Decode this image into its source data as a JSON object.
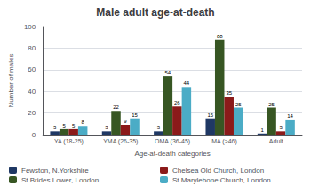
{
  "chart_data": {
    "type": "bar",
    "title": "Male adult age-at-death",
    "xlabel": "Age-at-death categories",
    "ylabel": "Number of males",
    "categories": [
      "YA (18-25)",
      "YMA (26-35)",
      "OMA (36-45)",
      "MA (>46)",
      "Adult"
    ],
    "series": [
      {
        "name": "Fewston, N.Yorkshire",
        "color": "#1F3864",
        "values": [
          3,
          3,
          3,
          15,
          1
        ]
      },
      {
        "name": "St Brides Lower, London",
        "color": "#375623",
        "values": [
          5,
          22,
          54,
          88,
          25
        ]
      },
      {
        "name": "Chelsea Old Church, London",
        "color": "#8B1A1A",
        "values": [
          5,
          9,
          26,
          35,
          3
        ]
      },
      {
        "name": "St Marylebone Church, London",
        "color": "#4BACC6",
        "values": [
          8,
          15,
          44,
          25,
          14
        ]
      }
    ],
    "ylim": [
      0,
      100
    ],
    "yticks": [
      0,
      20,
      40,
      60,
      80,
      100
    ],
    "grid": true,
    "legend": "lower left",
    "data_labels": true
  }
}
